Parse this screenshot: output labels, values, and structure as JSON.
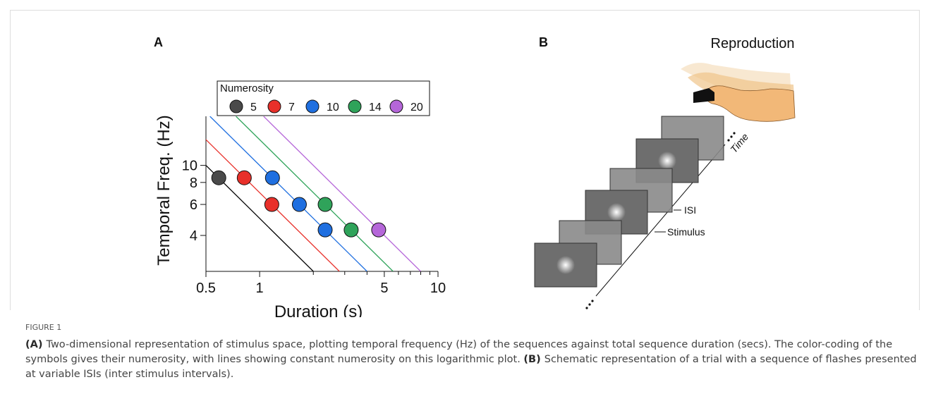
{
  "chart_data": {
    "type": "scatter",
    "panel_label": "A",
    "xlabel": "Duration (s)",
    "ylabel": "Temporal Freq. (Hz)",
    "xlog": true,
    "ylog": true,
    "xlim": [
      0.5,
      10
    ],
    "ylim": [
      2.5,
      19
    ],
    "xticks": [
      0.5,
      1,
      5,
      10
    ],
    "xminor": [
      2,
      3,
      4,
      6,
      7,
      8,
      9
    ],
    "yticks": [
      4,
      6,
      8,
      10
    ],
    "legend_title": "Numerosity",
    "legend_position": "top",
    "series": [
      {
        "name": "5",
        "color": "#4a4a4a",
        "line_color": "#000000",
        "x": [
          0.59
        ],
        "values": [
          8.5
        ]
      },
      {
        "name": "7",
        "color": "#e8302a",
        "line_color": "#e8302a",
        "x": [
          0.82,
          1.17
        ],
        "values": [
          8.5,
          6
        ]
      },
      {
        "name": "10",
        "color": "#1f6fe0",
        "line_color": "#1f6fe0",
        "x": [
          1.18,
          1.67,
          2.33
        ],
        "values": [
          8.5,
          6,
          4.3
        ]
      },
      {
        "name": "14",
        "color": "#2fa35a",
        "line_color": "#2fa35a",
        "x": [
          2.33,
          3.26
        ],
        "values": [
          6,
          4.3
        ]
      },
      {
        "name": "20",
        "color": "#b566d9",
        "line_color": "#b566d9",
        "x": [
          4.65
        ],
        "values": [
          4.3
        ]
      }
    ]
  },
  "panel_b": {
    "label": "B",
    "title": "Reproduction",
    "isi": "ISI",
    "stimulus": "Stimulus",
    "time": "Time"
  },
  "caption": {
    "figure": "FIGURE 1",
    "parts": [
      {
        "label": "(A)",
        "text": "Two-dimensional representation of stimulus space, plotting temporal frequency (Hz) of the sequences against total sequence duration (secs). The color-coding of the symbols gives their numerosity, with lines showing constant numerosity on this logarithmic plot."
      },
      {
        "label": "(B)",
        "text": "Schematic representation of a trial with a sequence of flashes presented at variable ISIs (inter stimulus intervals)."
      }
    ]
  }
}
